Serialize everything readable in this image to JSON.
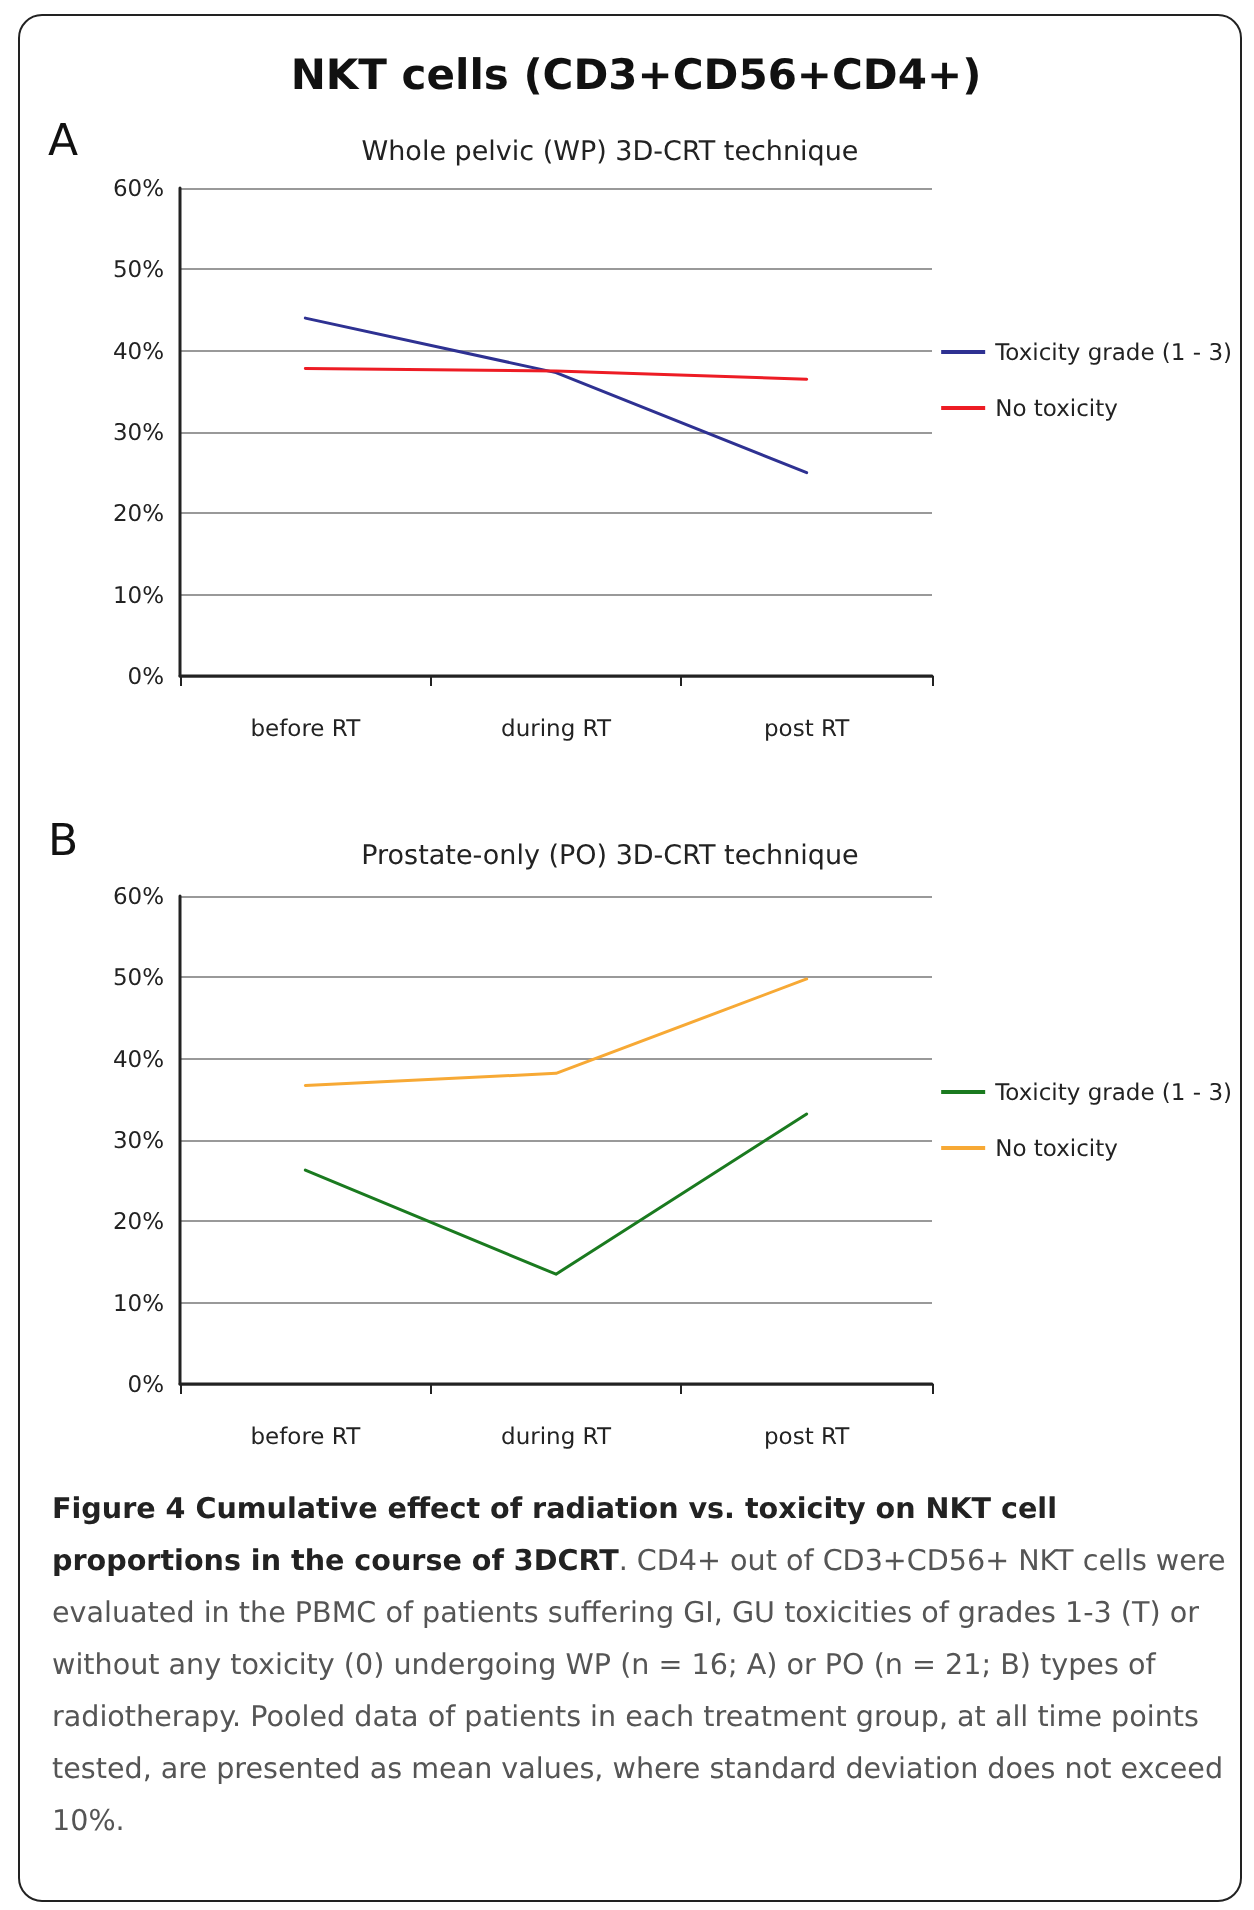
{
  "chart_data": [
    {
      "type": "line",
      "title": "NKT cells (CD3+CD56+CD4+)",
      "subtitle": "Whole pelvic (WP) 3D-CRT technique",
      "annotations": [
        "A"
      ],
      "categories": [
        "before RT",
        "during RT",
        "post RT"
      ],
      "series": [
        {
          "name": "Toxicity grade (1 - 3)",
          "color": "#2e3192",
          "values": [
            44,
            37.3,
            25
          ]
        },
        {
          "name": "No toxicity",
          "color": "#ed1c24",
          "values": [
            37.8,
            37.5,
            36.5
          ]
        }
      ],
      "ylim": [
        0,
        60
      ],
      "yticks": [
        {
          "value": 0,
          "label": "0%"
        },
        {
          "value": 10,
          "label": "10%"
        },
        {
          "value": 20,
          "label": "20%"
        },
        {
          "value": 30,
          "label": "30%"
        },
        {
          "value": 40,
          "label": "40%"
        },
        {
          "value": 50,
          "label": "50%"
        },
        {
          "value": 60,
          "label": "60%"
        }
      ],
      "grid": "y",
      "legend": "right",
      "marker": "none",
      "line_style": "solid"
    },
    {
      "type": "line",
      "subtitle": "Prostate-only (PO) 3D-CRT technique",
      "annotations": [
        "B",
        "Figure 4 Cumulative effect of radiation vs. toxicity on NKT cell proportions in the course of 3DCRT",
        ". CD4+ out of CD3+CD56+ NKT cells were evaluated in the PBMC of patients suffering GI, GU toxicities of grades 1-3 (T) or without any toxicity (0) undergoing WP (n = 16; A) or PO (n = 21; B) types of radiotherapy. Pooled data of patients in each treatment group, at all time points tested, are presented as mean values, where standard deviation does not exceed 10%."
      ],
      "categories": [
        "before RT",
        "during RT",
        "post RT"
      ],
      "series": [
        {
          "name": "Toxicity grade (1 - 3)",
          "color": "#1a7a1f",
          "values": [
            26.3,
            13.5,
            33.2
          ]
        },
        {
          "name": "No toxicity",
          "color": "#f7a935",
          "values": [
            36.7,
            38.2,
            49.8
          ]
        }
      ],
      "ylim": [
        0,
        60
      ],
      "yticks": [
        {
          "value": 0,
          "label": "0%"
        },
        {
          "value": 10,
          "label": "10%"
        },
        {
          "value": 20,
          "label": "20%"
        },
        {
          "value": 30,
          "label": "30%"
        },
        {
          "value": 40,
          "label": "40%"
        },
        {
          "value": 50,
          "label": "50%"
        },
        {
          "value": 60,
          "label": "60%"
        }
      ],
      "grid": "y",
      "legend": "right",
      "marker": "none",
      "line_style": "solid"
    }
  ]
}
